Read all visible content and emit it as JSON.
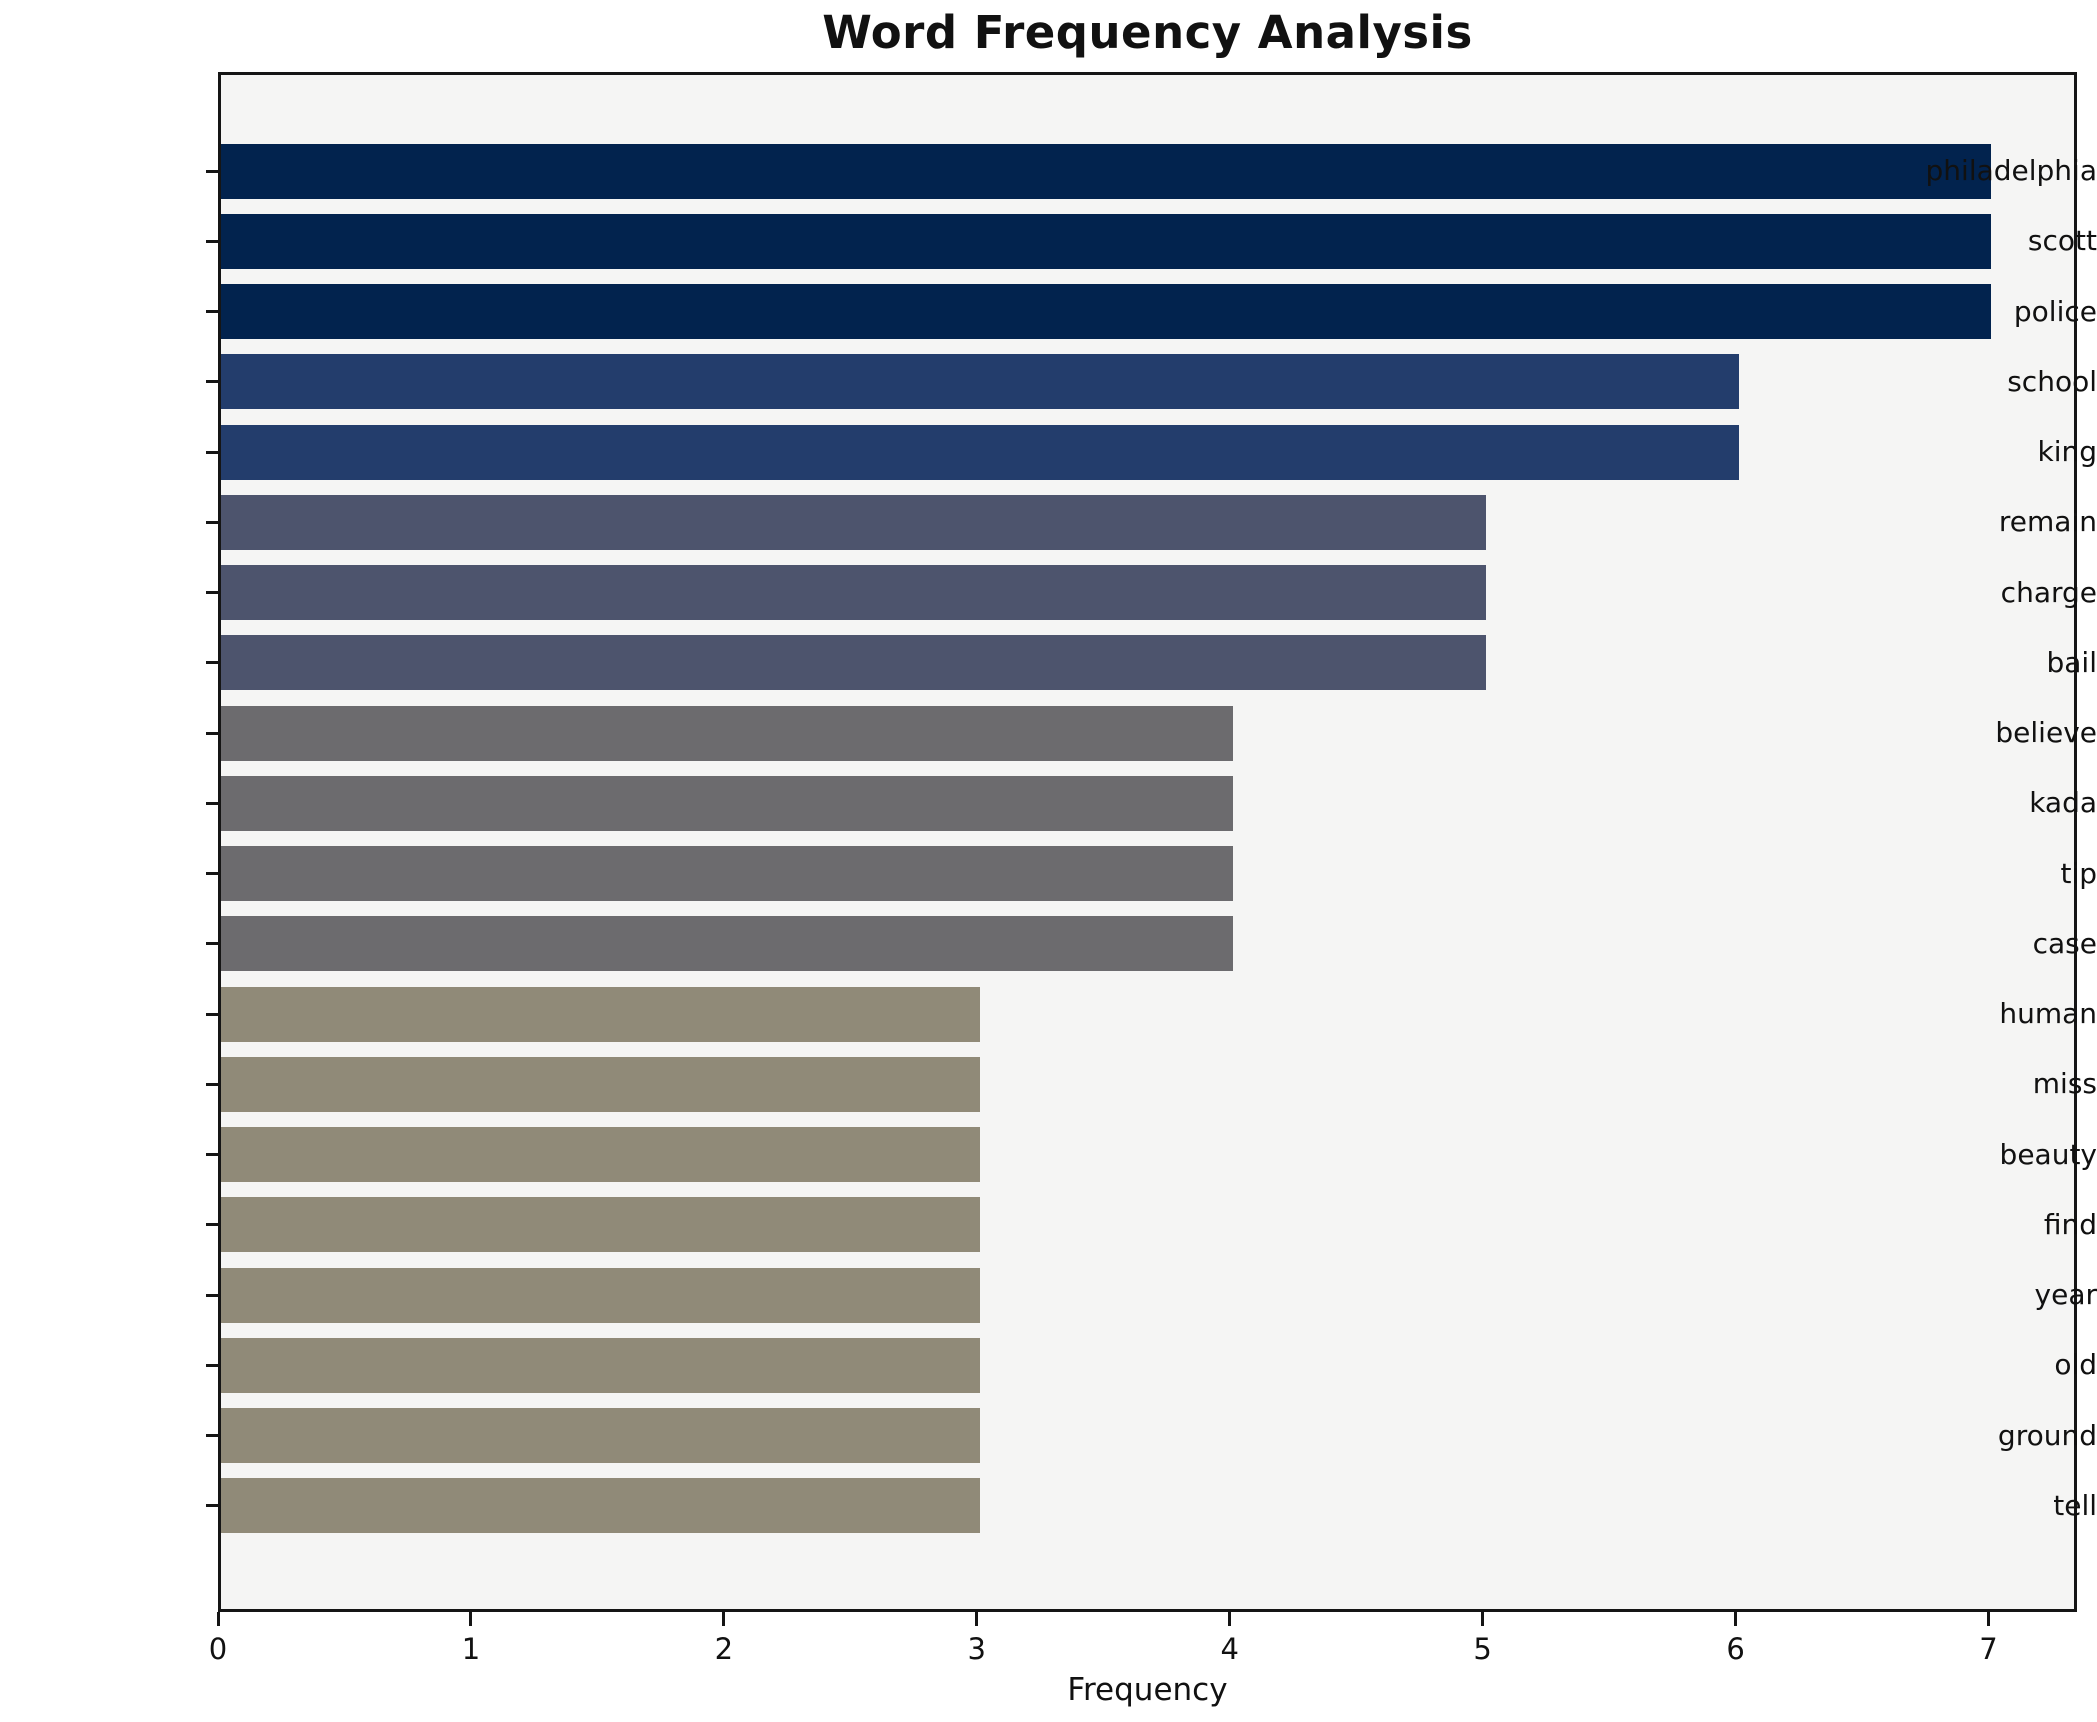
{
  "title": "Word Frequency Analysis",
  "chart_data": {
    "type": "bar",
    "orientation": "horizontal",
    "title": "Word Frequency Analysis",
    "xlabel": "Frequency",
    "ylabel": "",
    "categories": [
      "philadelphia",
      "scott",
      "police",
      "school",
      "king",
      "remain",
      "charge",
      "bail",
      "believe",
      "kada",
      "tip",
      "case",
      "human",
      "miss",
      "beauty",
      "find",
      "year",
      "old",
      "ground",
      "tell"
    ],
    "values": [
      7,
      7,
      7,
      6,
      6,
      5,
      5,
      5,
      4,
      4,
      4,
      4,
      3,
      3,
      3,
      3,
      3,
      3,
      3,
      3
    ],
    "bar_colors": [
      "#02234e",
      "#02234e",
      "#02234e",
      "#233d6c",
      "#233d6c",
      "#4d546d",
      "#4d546d",
      "#4d546d",
      "#6c6b6e",
      "#6c6b6e",
      "#6c6b6e",
      "#6c6b6e",
      "#908a78",
      "#908a78",
      "#908a78",
      "#908a78",
      "#908a78",
      "#908a78",
      "#908a78",
      "#908a78"
    ],
    "xticks": [
      0,
      1,
      2,
      3,
      4,
      5,
      6,
      7
    ],
    "xlim": [
      0,
      7.35
    ],
    "grid": false,
    "legend": null,
    "plot_bg": "#f5f5f4",
    "figure_bg": "#ffffff",
    "spine_color": "#151515",
    "text_color": "#111111"
  }
}
